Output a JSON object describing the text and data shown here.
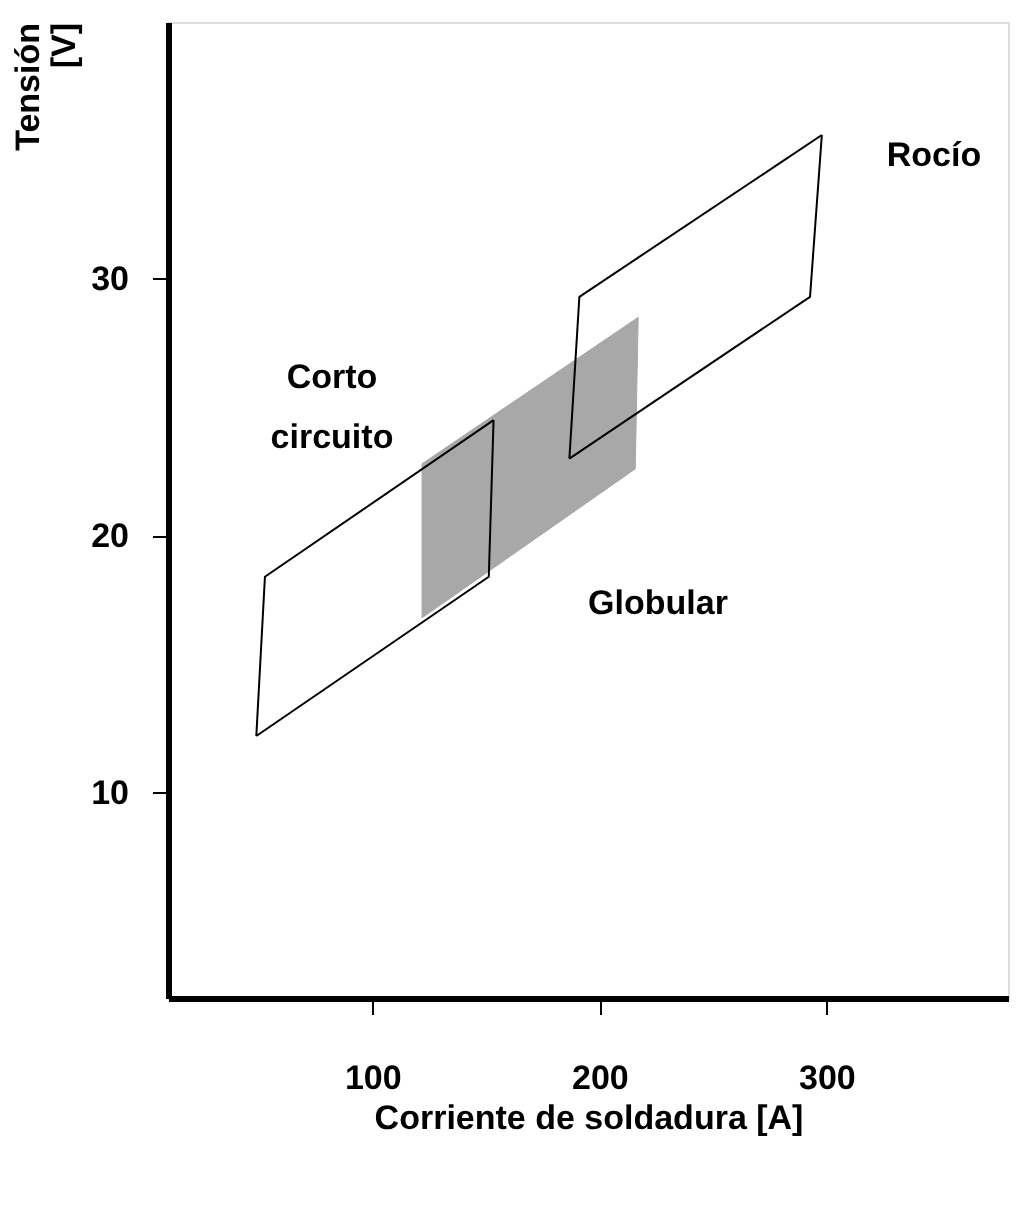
{
  "chart_data": {
    "type": "line",
    "xlabel": "Corriente de soldadura [A]",
    "ylabel": "Tensión [V]",
    "xlim": [
      10,
      380
    ],
    "ylim": [
      2,
      40
    ],
    "xticks": [
      100,
      200,
      300
    ],
    "yticks": [
      10,
      20,
      30
    ],
    "grid": false,
    "marker": "none",
    "line_style": "solid",
    "series": [
      {
        "type": "area",
        "color": "#a8a8a8",
        "x": [
          121.9,
          217.1,
          215.8,
          121.9,
          121.9
        ],
        "values": [
          22.8,
          28.5,
          22.6,
          16.8,
          22.8
        ]
      },
      {
        "color": "#000000",
        "x": [
          48.9,
          52.7,
          153.4
        ],
        "values": [
          12.2,
          18.4,
          24.5
        ]
      },
      {
        "color": "#000000",
        "x": [
          48.9,
          151.3,
          153.4
        ],
        "values": [
          12.2,
          18.4,
          24.5
        ]
      },
      {
        "color": "#000000",
        "x": [
          186.8,
          191.2,
          298.0
        ],
        "values": [
          23.0,
          29.3,
          35.6
        ]
      },
      {
        "color": "#000000",
        "x": [
          186.8,
          292.8,
          298.0
        ],
        "values": [
          23.0,
          29.3,
          35.6
        ]
      }
    ],
    "annotations": [
      "Corto circuito",
      "Globular",
      "Rocío"
    ]
  }
}
